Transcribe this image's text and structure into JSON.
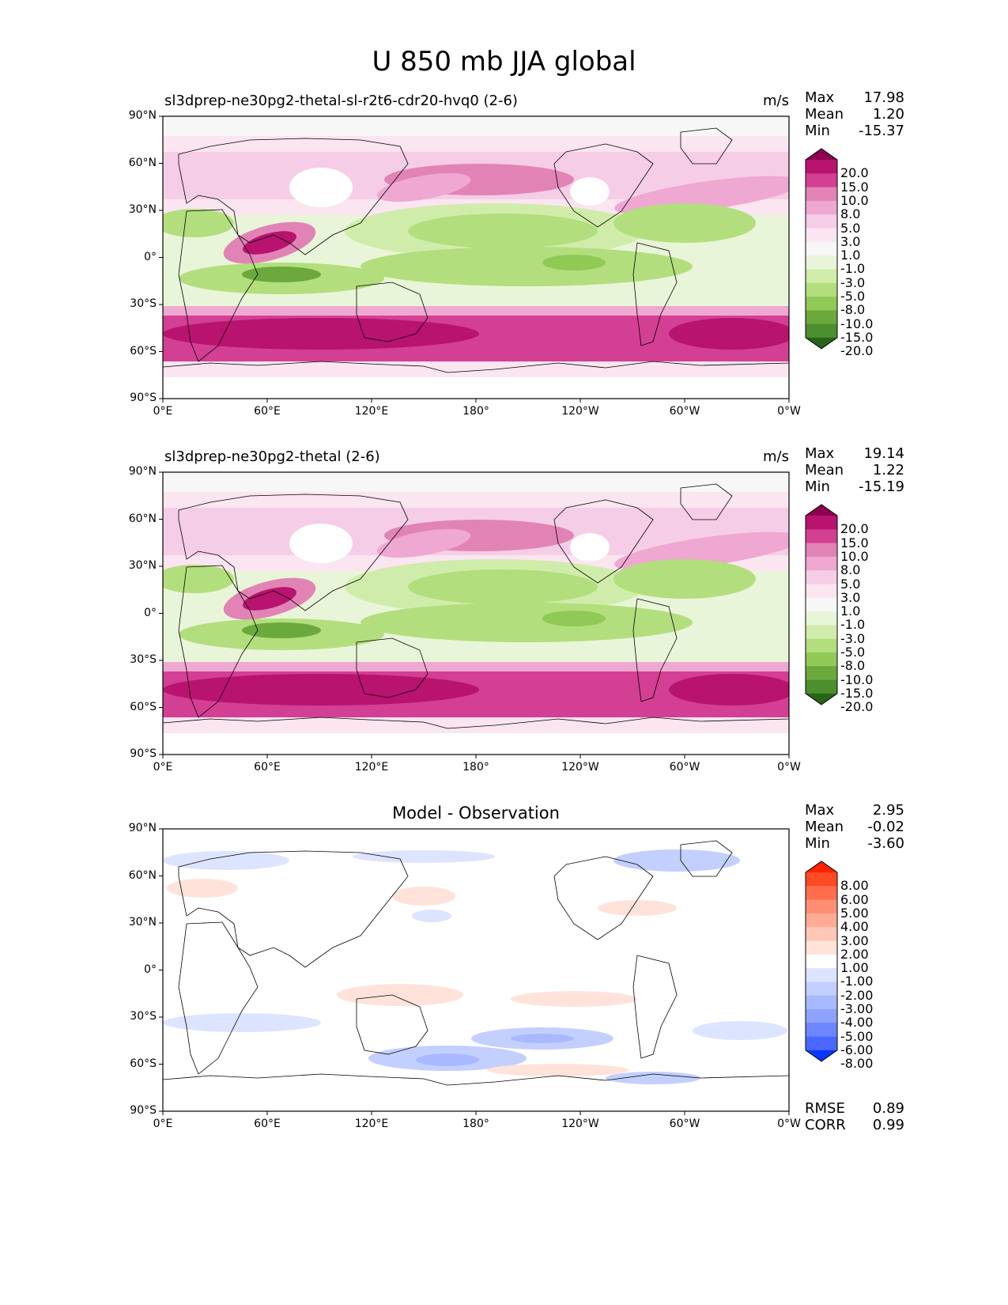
{
  "figure": {
    "title": "U 850 mb JJA global"
  },
  "chart_data": [
    {
      "type": "heatmap",
      "title": "sl3dprep-ne30pg2-thetal-sl-r2t6-cdr20-hvq0 (2-6)",
      "units": "m/s",
      "stats": [
        {
          "label": "Max",
          "value": "17.98"
        },
        {
          "label": "Mean",
          "value": "1.20"
        },
        {
          "label": "Min",
          "value": "-15.37"
        }
      ],
      "xticks": [
        "0°E",
        "60°E",
        "120°E",
        "180°",
        "120°W",
        "60°W",
        "0°W"
      ],
      "yticks": [
        "90°N",
        "60°N",
        "30°N",
        "0°",
        "30°S",
        "60°S",
        "90°S"
      ],
      "colorbar": {
        "levels": [
          "20.0",
          "15.0",
          "10.0",
          "8.0",
          "5.0",
          "3.0",
          "1.0",
          "-1.0",
          "-3.0",
          "-5.0",
          "-8.0",
          "-10.0",
          "-15.0",
          "-20.0"
        ],
        "colors": [
          "#8e0152",
          "#b8136f",
          "#d33f92",
          "#e283b6",
          "#eea8d1",
          "#f6cde6",
          "#fae5f1",
          "#f7f7f7",
          "#e9f5d8",
          "#d0ecaa",
          "#b3de7d",
          "#91c956",
          "#6ba93c",
          "#4c8f2e",
          "#276419"
        ]
      }
    },
    {
      "type": "heatmap",
      "title": "sl3dprep-ne30pg2-thetal (2-6)",
      "units": "m/s",
      "stats": [
        {
          "label": "Max",
          "value": "19.14"
        },
        {
          "label": "Mean",
          "value": "1.22"
        },
        {
          "label": "Min",
          "value": "-15.19"
        }
      ],
      "xticks": [
        "0°E",
        "60°E",
        "120°E",
        "180°",
        "120°W",
        "60°W",
        "0°W"
      ],
      "yticks": [
        "90°N",
        "60°N",
        "30°N",
        "0°",
        "30°S",
        "60°S",
        "90°S"
      ],
      "colorbar": {
        "levels": [
          "20.0",
          "15.0",
          "10.0",
          "8.0",
          "5.0",
          "3.0",
          "1.0",
          "-1.0",
          "-3.0",
          "-5.0",
          "-8.0",
          "-10.0",
          "-15.0",
          "-20.0"
        ],
        "colors": [
          "#8e0152",
          "#b8136f",
          "#d33f92",
          "#e283b6",
          "#eea8d1",
          "#f6cde6",
          "#fae5f1",
          "#f7f7f7",
          "#e9f5d8",
          "#d0ecaa",
          "#b3de7d",
          "#91c956",
          "#6ba93c",
          "#4c8f2e",
          "#276419"
        ]
      }
    },
    {
      "type": "heatmap",
      "title": "Model - Observation",
      "units": "",
      "stats": [
        {
          "label": "Max",
          "value": "2.95"
        },
        {
          "label": "Mean",
          "value": "-0.02"
        },
        {
          "label": "Min",
          "value": "-3.60"
        }
      ],
      "extra_stats": [
        {
          "label": "RMSE",
          "value": "0.89"
        },
        {
          "label": "CORR",
          "value": "0.99"
        }
      ],
      "xticks": [
        "0°E",
        "60°E",
        "120°E",
        "180°",
        "120°W",
        "60°W",
        "0°W"
      ],
      "yticks": [
        "90°N",
        "60°N",
        "30°N",
        "0°",
        "30°S",
        "60°S",
        "90°S"
      ],
      "colorbar": {
        "levels": [
          "8.00",
          "6.00",
          "5.00",
          "4.00",
          "3.00",
          "2.00",
          "1.00",
          "-1.00",
          "-2.00",
          "-3.00",
          "-4.00",
          "-5.00",
          "-6.00",
          "-8.00"
        ],
        "colors": [
          "#ff2200",
          "#ff4a26",
          "#ff6d4d",
          "#ff8f73",
          "#ffab96",
          "#ffc7b8",
          "#ffe3da",
          "#ffffff",
          "#dde4ff",
          "#c3cfff",
          "#a9b9ff",
          "#8ea3ff",
          "#6d86ff",
          "#4a68ff",
          "#0a35ff"
        ]
      }
    }
  ]
}
